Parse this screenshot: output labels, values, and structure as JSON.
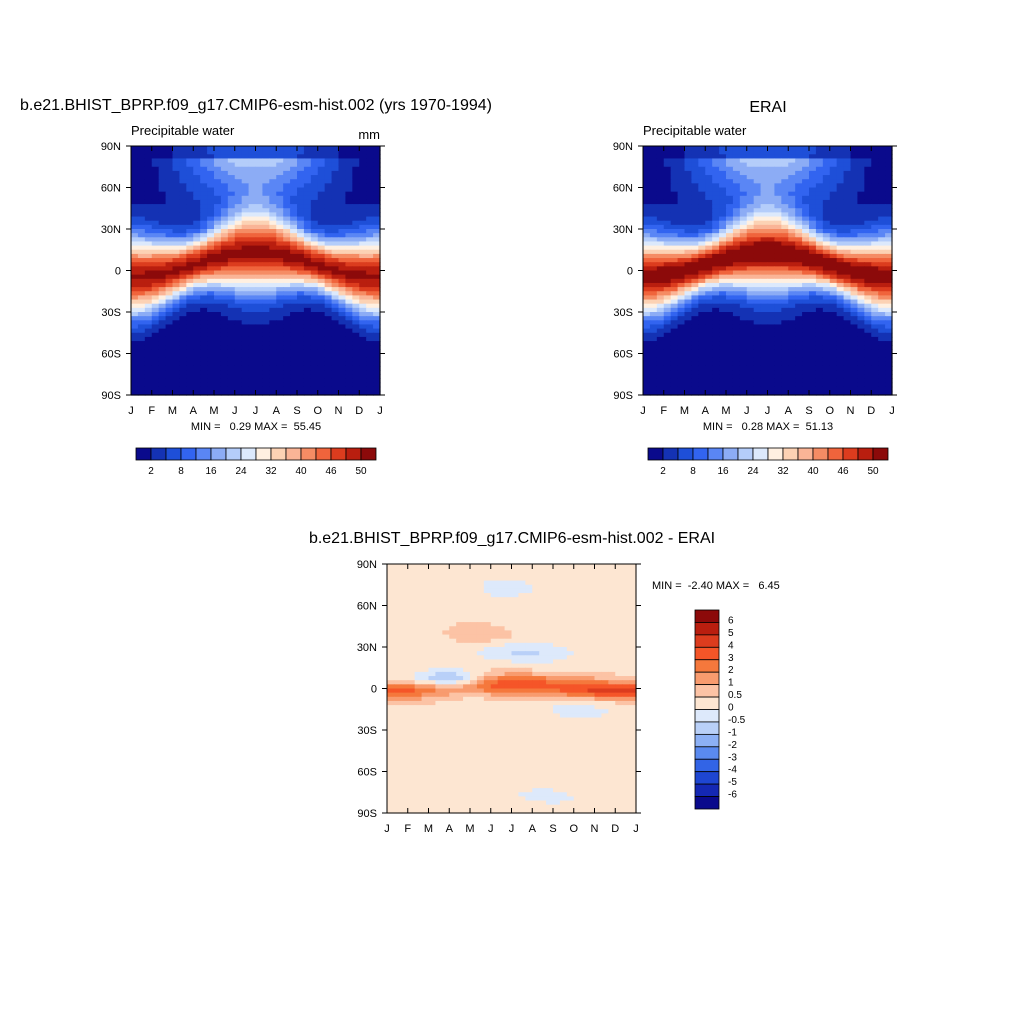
{
  "panels": [
    {
      "title": "b.e21.BHIST_BPRP.f09_g17.CMIP6-esm-hist.002 (yrs 1970-1994)",
      "left_label": "Precipitable water",
      "right_label": "mm",
      "minmax_text": "MIN =   0.29 MAX =  55.45",
      "stats": {
        "min": 0.29,
        "max": 55.45
      }
    },
    {
      "title": "ERAI",
      "left_label": "Precipitable water",
      "right_label": "",
      "minmax_text": "MIN =   0.28 MAX =  51.13",
      "stats": {
        "min": 0.28,
        "max": 51.13
      }
    },
    {
      "title": "b.e21.BHIST_BPRP.f09_g17.CMIP6-esm-hist.002 - ERAI",
      "left_label": "",
      "right_label": "",
      "minmax_text": "MIN =  -2.40 MAX =   6.45",
      "stats": {
        "min": -2.4,
        "max": 6.45
      }
    }
  ],
  "x_ticks": [
    "J",
    "F",
    "M",
    "A",
    "M",
    "J",
    "J",
    "A",
    "S",
    "O",
    "N",
    "D",
    "J"
  ],
  "y_ticks": [
    "90N",
    "60N",
    "30N",
    "0",
    "30S",
    "60S",
    "90S"
  ],
  "colorbar_abs": {
    "labels": [
      "2",
      "8",
      "16",
      "24",
      "32",
      "40",
      "46",
      "50"
    ],
    "colors": [
      "#0a0a8c",
      "#1432b4",
      "#1e4fd8",
      "#3264f0",
      "#5a86f5",
      "#8cacf5",
      "#b4cdfa",
      "#dce9fc",
      "#fff0e1",
      "#fcd2b4",
      "#fab496",
      "#f58c64",
      "#f0643c",
      "#dc3c1e",
      "#b91e0f",
      "#8c0a0a"
    ]
  },
  "colorbar_diff": {
    "labels": [
      "6",
      "5",
      "4",
      "3",
      "2",
      "1",
      "0.5",
      "0",
      "-0.5",
      "-1",
      "-2",
      "-3",
      "-4",
      "-5",
      "-6"
    ],
    "colors": [
      "#8c0a0a",
      "#b91e0f",
      "#dc3c1e",
      "#f55528",
      "#f5783c",
      "#f89b6e",
      "#fcc3a5",
      "#fde6d2",
      "#dde9fb",
      "#b9d0f8",
      "#8cb0f5",
      "#5a8af0",
      "#3264e6",
      "#1e46d2",
      "#1428b4",
      "#0a0a8c"
    ]
  },
  "chart_data": [
    {
      "type": "heatmap",
      "title": "b.e21.BHIST_BPRP.f09_g17.CMIP6-esm-hist.002 (yrs 1970-1994)",
      "subtitle_left": "Precipitable water",
      "units": "mm",
      "x": [
        "J",
        "F",
        "M",
        "A",
        "M",
        "J",
        "J",
        "A",
        "S",
        "O",
        "N",
        "D",
        "J"
      ],
      "y_range": [
        "90S",
        "90N"
      ],
      "levels": [
        2,
        4,
        6,
        8,
        12,
        16,
        20,
        24,
        28,
        32,
        36,
        40,
        43,
        46,
        48,
        50
      ],
      "stats": {
        "min": 0.29,
        "max": 55.45
      }
    },
    {
      "type": "heatmap",
      "title": "ERAI",
      "subtitle_left": "Precipitable water",
      "x": [
        "J",
        "F",
        "M",
        "A",
        "M",
        "J",
        "J",
        "A",
        "S",
        "O",
        "N",
        "D",
        "J"
      ],
      "y_range": [
        "90S",
        "90N"
      ],
      "levels": [
        2,
        4,
        6,
        8,
        12,
        16,
        20,
        24,
        28,
        32,
        36,
        40,
        43,
        46,
        48,
        50
      ],
      "stats": {
        "min": 0.28,
        "max": 51.13
      }
    },
    {
      "type": "heatmap",
      "title": "b.e21.BHIST_BPRP.f09_g17.CMIP6-esm-hist.002 - ERAI",
      "x": [
        "J",
        "F",
        "M",
        "A",
        "M",
        "J",
        "J",
        "A",
        "S",
        "O",
        "N",
        "D",
        "J"
      ],
      "y_range": [
        "90S",
        "90N"
      ],
      "levels": [
        -6,
        -5,
        -4,
        -3,
        -2,
        -1,
        -0.5,
        0,
        0.5,
        1,
        2,
        3,
        4,
        5,
        6
      ],
      "stats": {
        "min": -2.4,
        "max": 6.45
      }
    }
  ]
}
